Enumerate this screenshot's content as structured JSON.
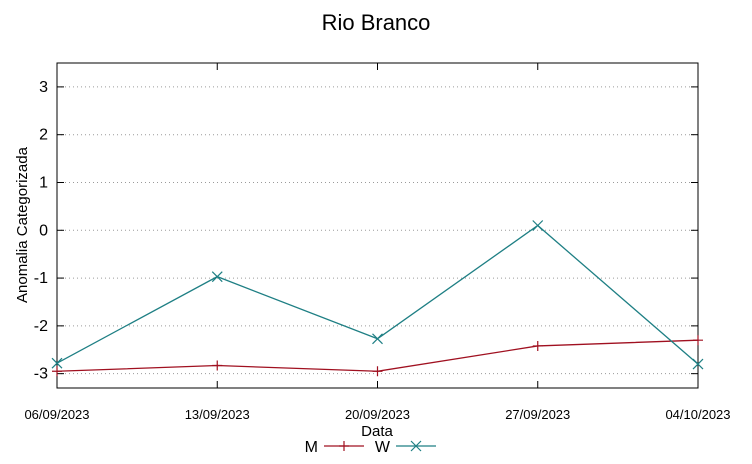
{
  "chart_data": {
    "type": "line",
    "title": "Rio Branco",
    "xlabel": "Data",
    "ylabel": "Anomalia Categorizada",
    "x": [
      "06/09/2023",
      "13/09/2023",
      "20/09/2023",
      "27/09/2023",
      "04/10/2023"
    ],
    "ylim": [
      -3.3,
      3.5
    ],
    "yticks": [
      3,
      2,
      1,
      0,
      -1,
      -2,
      -3
    ],
    "grid": "horizontal dotted",
    "legend_position": "bottom-center",
    "series": [
      {
        "name": "M",
        "color": "#a01020",
        "marker": "plus",
        "values": [
          -2.95,
          -2.83,
          -2.95,
          -2.42,
          -2.3
        ]
      },
      {
        "name": "W",
        "color": "#1e7f84",
        "marker": "cross",
        "values": [
          -2.78,
          -0.97,
          -2.27,
          0.1,
          -2.8
        ]
      }
    ]
  }
}
